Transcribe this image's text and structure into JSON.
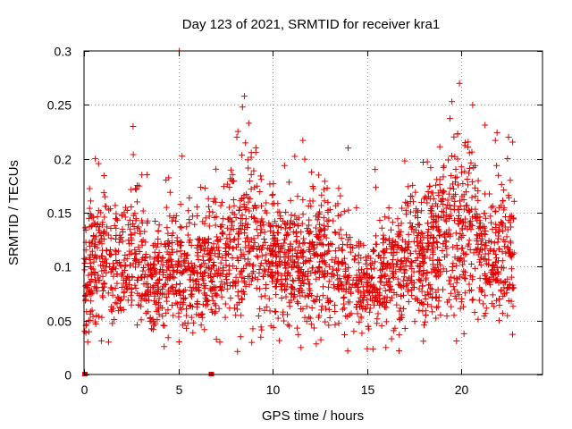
{
  "chart_data": {
    "type": "scatter",
    "title": "Day 123 of 2021, SRMTID for receiver kra1",
    "xlabel": "GPS time / hours",
    "ylabel": "SRMTID / TECUs",
    "xlim": [
      0,
      24.3
    ],
    "ylim": [
      0,
      0.3
    ],
    "x_ticks": [
      {
        "value": 0,
        "label": "0"
      },
      {
        "value": 5,
        "label": "5"
      },
      {
        "value": 10,
        "label": "10"
      },
      {
        "value": 15,
        "label": "15"
      },
      {
        "value": 20,
        "label": "20"
      }
    ],
    "y_ticks": [
      {
        "value": 0,
        "label": "0"
      },
      {
        "value": 0.05,
        "label": "0.05"
      },
      {
        "value": 0.1,
        "label": "0.1"
      },
      {
        "value": 0.15,
        "label": "0.15"
      },
      {
        "value": 0.2,
        "label": "0.2"
      },
      {
        "value": 0.25,
        "label": "0.25"
      },
      {
        "value": 0.3,
        "label": "0.3"
      }
    ],
    "grid": true,
    "marker": "+",
    "color": "#e00000",
    "zero_markers_x": [
      0.05,
      6.75
    ],
    "x_range_hours": [
      0,
      22.8
    ],
    "baseline_profile": [
      {
        "x": 0.0,
        "y": 0.085
      },
      {
        "x": 0.5,
        "y": 0.1
      },
      {
        "x": 1.0,
        "y": 0.11
      },
      {
        "x": 2.0,
        "y": 0.102
      },
      {
        "x": 3.0,
        "y": 0.11
      },
      {
        "x": 3.5,
        "y": 0.085
      },
      {
        "x": 4.5,
        "y": 0.09
      },
      {
        "x": 5.5,
        "y": 0.095
      },
      {
        "x": 7.0,
        "y": 0.1
      },
      {
        "x": 8.0,
        "y": 0.115
      },
      {
        "x": 8.5,
        "y": 0.135
      },
      {
        "x": 9.5,
        "y": 0.11
      },
      {
        "x": 11.0,
        "y": 0.1
      },
      {
        "x": 12.5,
        "y": 0.11
      },
      {
        "x": 14.0,
        "y": 0.09
      },
      {
        "x": 15.0,
        "y": 0.085
      },
      {
        "x": 16.0,
        "y": 0.09
      },
      {
        "x": 17.0,
        "y": 0.11
      },
      {
        "x": 18.5,
        "y": 0.115
      },
      {
        "x": 19.5,
        "y": 0.14
      },
      {
        "x": 20.5,
        "y": 0.13
      },
      {
        "x": 21.5,
        "y": 0.105
      },
      {
        "x": 22.5,
        "y": 0.115
      }
    ],
    "notable_points": [
      {
        "x": 5.05,
        "y": 0.3
      },
      {
        "x": 19.9,
        "y": 0.27
      },
      {
        "x": 8.5,
        "y": 0.258
      },
      {
        "x": 8.4,
        "y": 0.248
      },
      {
        "x": 19.5,
        "y": 0.253
      },
      {
        "x": 20.6,
        "y": 0.25
      },
      {
        "x": 2.6,
        "y": 0.23
      },
      {
        "x": 11.6,
        "y": 0.217
      },
      {
        "x": 22.5,
        "y": 0.22
      },
      {
        "x": 14.0,
        "y": 0.21
      },
      {
        "x": 8.1,
        "y": 0.22
      },
      {
        "x": 20.2,
        "y": 0.215
      },
      {
        "x": 21.8,
        "y": 0.217
      },
      {
        "x": 0.6,
        "y": 0.2
      },
      {
        "x": 17.0,
        "y": 0.198
      },
      {
        "x": 11.3,
        "y": 0.043
      },
      {
        "x": 11.5,
        "y": 0.025
      },
      {
        "x": 8.3,
        "y": 0.035
      },
      {
        "x": 16.7,
        "y": 0.022
      },
      {
        "x": 0.2,
        "y": 0.03
      },
      {
        "x": 1.3,
        "y": 0.03
      },
      {
        "x": 7.2,
        "y": 0.03
      },
      {
        "x": 16.0,
        "y": 0.025
      },
      {
        "x": 16.3,
        "y": 0.033
      },
      {
        "x": 22.0,
        "y": 0.05
      },
      {
        "x": 14.3,
        "y": 0.04
      }
    ]
  }
}
